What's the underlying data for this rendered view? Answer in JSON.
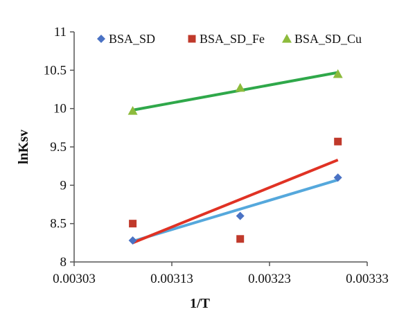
{
  "chart_data": {
    "type": "scatter",
    "title": "",
    "xlabel": "1/T",
    "ylabel": "lnKsv",
    "xlim": [
      0.00303,
      0.00333
    ],
    "ylim": [
      8,
      11
    ],
    "x_ticks": [
      "0.00303",
      "0.00313",
      "0.00323",
      "0.00333"
    ],
    "y_ticks": [
      "8",
      "8.5",
      "9",
      "9.5",
      "10",
      "10.5",
      "11"
    ],
    "grid": false,
    "legend": "top",
    "series": [
      {
        "name": "BSA_SD",
        "marker": "diamond",
        "marker_color": "#4a72c4",
        "line_color": "#55a8dc",
        "points": [
          {
            "x": 0.00309,
            "y": 8.28
          },
          {
            "x": 0.0032,
            "y": 8.6
          },
          {
            "x": 0.0033,
            "y": 9.1
          }
        ],
        "trendline": [
          {
            "x": 0.00309,
            "y": 8.27
          },
          {
            "x": 0.0033,
            "y": 9.07
          }
        ]
      },
      {
        "name": "BSA_SD_Fe",
        "marker": "square",
        "marker_color": "#c0392b",
        "line_color": "#e03224",
        "points": [
          {
            "x": 0.00309,
            "y": 8.5
          },
          {
            "x": 0.0032,
            "y": 8.3
          },
          {
            "x": 0.0033,
            "y": 9.57
          }
        ],
        "trendline": [
          {
            "x": 0.00309,
            "y": 8.25
          },
          {
            "x": 0.0033,
            "y": 9.33
          }
        ]
      },
      {
        "name": "BSA_SD_Cu",
        "marker": "triangle",
        "marker_color": "#8dbb3c",
        "line_color": "#2fa84a",
        "points": [
          {
            "x": 0.00309,
            "y": 9.97
          },
          {
            "x": 0.0032,
            "y": 10.27
          },
          {
            "x": 0.0033,
            "y": 10.45
          }
        ],
        "trendline": [
          {
            "x": 0.00309,
            "y": 9.98
          },
          {
            "x": 0.0033,
            "y": 10.47
          }
        ]
      }
    ]
  }
}
